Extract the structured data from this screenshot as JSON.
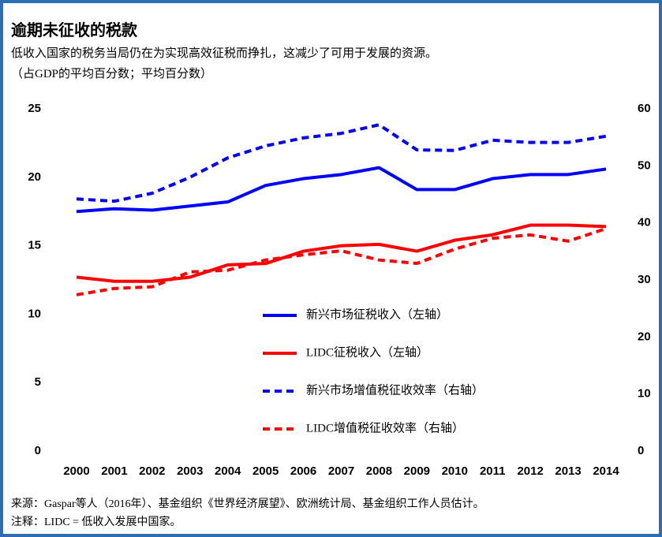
{
  "chart_data": {
    "type": "line",
    "title": "逾期未征收的税款",
    "subtitle": "低收入国家的税务当局仍在为实现高效征税而挣扎，这减少了可用于发展的资源。",
    "units": "（占GDP的平均百分数；平均百分数）",
    "source": "来源：Gaspar等人（2016年）、基金组织《世界经济展望》、欧洲统计局、基金组织工作人员估计。",
    "note": "注释：LIDC = 低收入发展中国家。",
    "categories": [
      "2000",
      "2001",
      "2002",
      "2003",
      "2004",
      "2005",
      "2006",
      "2007",
      "2008",
      "2009",
      "2010",
      "2011",
      "2012",
      "2013",
      "2014"
    ],
    "ylim": [
      0,
      25
    ],
    "yticks": [
      0,
      5,
      10,
      15,
      20,
      25
    ],
    "y2lim": [
      0,
      60
    ],
    "y2ticks": [
      0,
      10,
      20,
      30,
      40,
      50,
      60
    ],
    "series": [
      {
        "name": "新兴市场征税收入（左轴）",
        "color": "#0000ff",
        "dashed": false,
        "values": [
          17.5,
          17.7,
          17.6,
          17.9,
          18.2,
          19.4,
          19.9,
          20.2,
          20.7,
          19.1,
          19.1,
          19.9,
          20.2,
          20.2,
          20.6
        ]
      },
      {
        "name": "LIDC征税收入（左轴）",
        "color": "#ff0000",
        "dashed": false,
        "values": [
          12.7,
          12.4,
          12.4,
          12.7,
          13.6,
          13.7,
          14.6,
          15.0,
          15.1,
          14.6,
          15.4,
          15.8,
          16.5,
          16.5,
          16.4
        ]
      },
      {
        "name": "新兴市场增值税征收效率（右轴）",
        "color": "#0000ff",
        "dashed": true,
        "axis": "y2",
        "values": [
          44.2,
          43.8,
          45.2,
          48.0,
          51.4,
          53.5,
          54.9,
          55.7,
          57.2,
          52.8,
          52.7,
          54.5,
          54.1,
          54.1,
          55.2
        ]
      },
      {
        "name": "LIDC增值税征收效率（右轴）",
        "color": "#ff0000",
        "dashed": true,
        "axis": "y2",
        "values": [
          27.4,
          28.5,
          28.8,
          31.4,
          31.7,
          33.5,
          34.4,
          35.1,
          33.5,
          32.9,
          35.4,
          37.3,
          37.9,
          36.8,
          39.0
        ]
      }
    ]
  }
}
